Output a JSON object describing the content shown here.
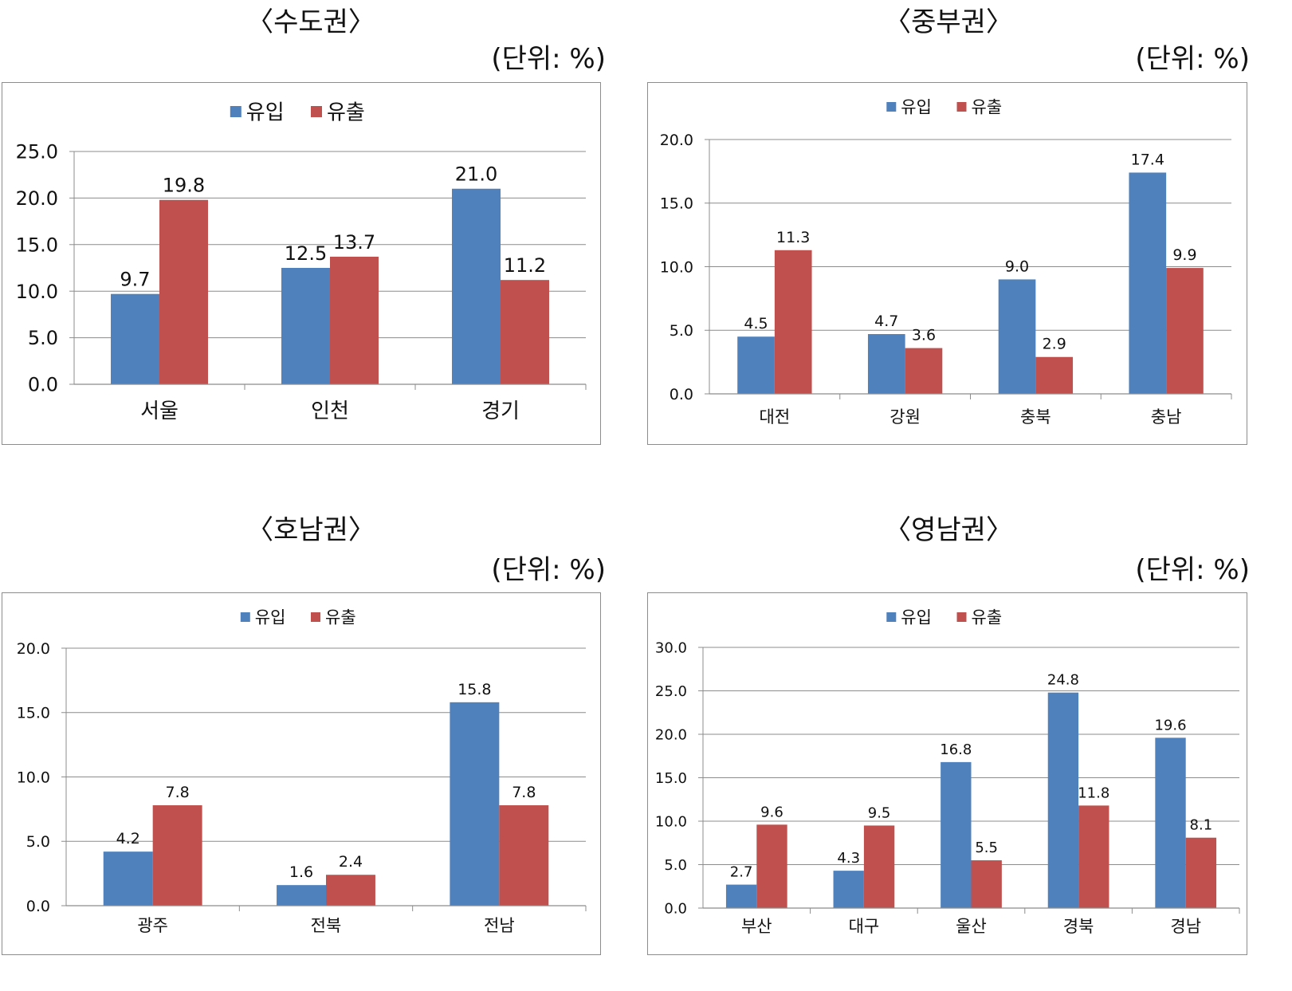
{
  "unit_label": "(단위: %)",
  "colors": {
    "inflow": "#4f81bd",
    "outflow": "#c0504d",
    "grid": "#8c8c8c",
    "border": "#8c8c8c"
  },
  "legend": {
    "inflow": "유입",
    "outflow": "유출"
  },
  "panels": [
    {
      "title": "〈수도권〉"
    },
    {
      "title": "〈중부권〉"
    },
    {
      "title": "〈호남권〉"
    },
    {
      "title": "〈영남권〉"
    }
  ],
  "chart_data": [
    {
      "type": "bar",
      "title": "〈수도권〉",
      "unit": "(단위: %)",
      "categories": [
        "서울",
        "인천",
        "경기"
      ],
      "series": [
        {
          "name": "유입",
          "values": [
            9.7,
            12.5,
            21.0
          ]
        },
        {
          "name": "유출",
          "values": [
            19.8,
            13.7,
            11.2
          ]
        }
      ],
      "ylim": [
        0,
        25
      ],
      "ystep": 5,
      "yticks": [
        "0.0",
        "5.0",
        "10.0",
        "15.0",
        "20.0",
        "25.0"
      ],
      "labels": [
        [
          "9.7",
          "12.5",
          "21.0"
        ],
        [
          "19.8",
          "13.7",
          "11.2"
        ]
      ],
      "legend_position": "top"
    },
    {
      "type": "bar",
      "title": "〈중부권〉",
      "unit": "(단위: %)",
      "categories": [
        "대전",
        "강원",
        "충북",
        "충남"
      ],
      "series": [
        {
          "name": "유입",
          "values": [
            4.5,
            4.7,
            9.0,
            17.4
          ]
        },
        {
          "name": "유출",
          "values": [
            11.3,
            3.6,
            2.9,
            9.9
          ]
        }
      ],
      "ylim": [
        0,
        20
      ],
      "ystep": 5,
      "yticks": [
        "0.0",
        "5.0",
        "10.0",
        "15.0",
        "20.0"
      ],
      "labels": [
        [
          "4.5",
          "4.7",
          "9.0",
          "17.4"
        ],
        [
          "11.3",
          "3.6",
          "2.9",
          "9.9"
        ]
      ],
      "legend_position": "top"
    },
    {
      "type": "bar",
      "title": "〈호남권〉",
      "unit": "(단위: %)",
      "categories": [
        "광주",
        "전북",
        "전남"
      ],
      "series": [
        {
          "name": "유입",
          "values": [
            4.2,
            1.6,
            15.8
          ]
        },
        {
          "name": "유출",
          "values": [
            7.8,
            2.4,
            7.8
          ]
        }
      ],
      "ylim": [
        0,
        20
      ],
      "ystep": 5,
      "yticks": [
        "0.0",
        "5.0",
        "10.0",
        "15.0",
        "20.0"
      ],
      "labels": [
        [
          "4.2",
          "1.6",
          "15.8"
        ],
        [
          "7.8",
          "2.4",
          "7.8"
        ]
      ],
      "legend_position": "top"
    },
    {
      "type": "bar",
      "title": "〈영남권〉",
      "unit": "(단위: %)",
      "categories": [
        "부산",
        "대구",
        "울산",
        "경북",
        "경남"
      ],
      "series": [
        {
          "name": "유입",
          "values": [
            2.7,
            4.3,
            16.8,
            24.8,
            19.6
          ]
        },
        {
          "name": "유출",
          "values": [
            9.6,
            9.5,
            5.5,
            11.8,
            8.1
          ]
        }
      ],
      "ylim": [
        0,
        30
      ],
      "ystep": 5,
      "yticks": [
        "0.0",
        "5.0",
        "10.0",
        "15.0",
        "20.0",
        "25.0",
        "30.0"
      ],
      "labels": [
        [
          "2.7",
          "4.3",
          "16.8",
          "24.8",
          "19.6"
        ],
        [
          "9.6",
          "9.5",
          "5.5",
          "11.8",
          "8.1"
        ]
      ],
      "legend_position": "top"
    }
  ]
}
